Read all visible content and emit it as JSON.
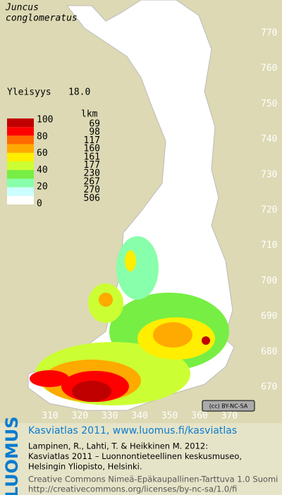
{
  "header": {
    "species": [
      "Juncus",
      "conglomeratus"
    ],
    "frequency_label": "Yleisyys",
    "frequency": "18.0"
  },
  "legend": {
    "scale_labels": [
      "100",
      "80",
      "60",
      "40",
      "20",
      "0"
    ],
    "count_header": "lkm",
    "counts": [
      "69",
      "98",
      "117",
      "160",
      "161",
      "177",
      "230",
      "267",
      "270",
      "506"
    ],
    "colors": [
      "#c00000",
      "#ff0000",
      "#ff6a00",
      "#ffaa00",
      "#ffee00",
      "#ccff33",
      "#77ee44",
      "#88ffaa",
      "#ccffff",
      "#ffffff"
    ]
  },
  "axes": {
    "y_labels": [
      "770",
      "760",
      "750",
      "740",
      "730",
      "720",
      "710",
      "700",
      "690",
      "680",
      "670"
    ],
    "x_labels": [
      "310",
      "320",
      "330",
      "340",
      "350",
      "360",
      "370"
    ]
  },
  "license_badge": "(cc) BY-NC-SA",
  "footer": {
    "logo": "LUOMUS",
    "title": "Kasviatlas 2011, www.luomus.fi/kasviatlas",
    "lines": [
      "Lampinen, R., Lahti, T. & Heikkinen M. 2012:",
      "Kasviatlas 2011 – Luonnontieteellinen keskusmuseo,",
      "Helsingin Yliopisto, Helsinki."
    ],
    "license_lines": [
      "Creative Commons Nimeä-Epäkaupallinen-Tarttuva 1.0 Suomi",
      "http://creativecommons.org/licenses/by-nc-sa/1.0/fi"
    ]
  }
}
